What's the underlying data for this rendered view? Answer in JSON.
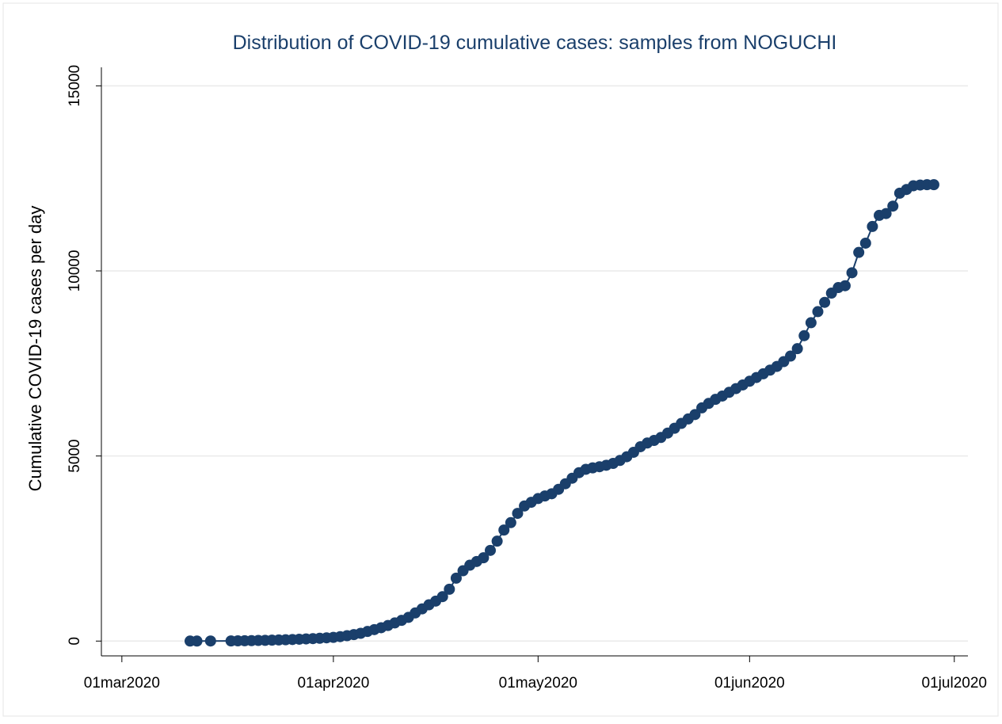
{
  "chart_data": {
    "type": "line",
    "title": "Distribution of COVID-19 cumulative cases: samples from NOGUCHI",
    "y_label": "Cumulative COVID-19 cases per day",
    "color": "#1a3f6b",
    "markers": true,
    "grid": true,
    "xlim": [
      "2020-02-27",
      "2020-07-03"
    ],
    "xticks": [
      {
        "value": "2020-03-01",
        "label": "01mar2020"
      },
      {
        "value": "2020-04-01",
        "label": "01apr2020"
      },
      {
        "value": "2020-05-01",
        "label": "01may2020"
      },
      {
        "value": "2020-06-01",
        "label": "01jun2020"
      },
      {
        "value": "2020-07-01",
        "label": "01jul2020"
      }
    ],
    "ylim": [
      -400,
      15500
    ],
    "yticks": [
      0,
      5000,
      10000,
      15000
    ],
    "x": [
      "2020-03-11",
      "2020-03-12",
      "2020-03-14",
      "2020-03-17",
      "2020-03-18",
      "2020-03-19",
      "2020-03-20",
      "2020-03-21",
      "2020-03-22",
      "2020-03-23",
      "2020-03-24",
      "2020-03-25",
      "2020-03-26",
      "2020-03-27",
      "2020-03-28",
      "2020-03-29",
      "2020-03-30",
      "2020-03-31",
      "2020-04-01",
      "2020-04-02",
      "2020-04-03",
      "2020-04-04",
      "2020-04-05",
      "2020-04-06",
      "2020-04-07",
      "2020-04-08",
      "2020-04-09",
      "2020-04-10",
      "2020-04-11",
      "2020-04-12",
      "2020-04-13",
      "2020-04-14",
      "2020-04-15",
      "2020-04-16",
      "2020-04-17",
      "2020-04-18",
      "2020-04-19",
      "2020-04-20",
      "2020-04-21",
      "2020-04-22",
      "2020-04-23",
      "2020-04-24",
      "2020-04-25",
      "2020-04-26",
      "2020-04-27",
      "2020-04-28",
      "2020-04-29",
      "2020-04-30",
      "2020-05-01",
      "2020-05-02",
      "2020-05-03",
      "2020-05-04",
      "2020-05-05",
      "2020-05-06",
      "2020-05-07",
      "2020-05-08",
      "2020-05-09",
      "2020-05-10",
      "2020-05-11",
      "2020-05-12",
      "2020-05-13",
      "2020-05-14",
      "2020-05-15",
      "2020-05-16",
      "2020-05-17",
      "2020-05-18",
      "2020-05-19",
      "2020-05-20",
      "2020-05-21",
      "2020-05-22",
      "2020-05-23",
      "2020-05-24",
      "2020-05-25",
      "2020-05-26",
      "2020-05-27",
      "2020-05-28",
      "2020-05-29",
      "2020-05-30",
      "2020-05-31",
      "2020-06-01",
      "2020-06-02",
      "2020-06-03",
      "2020-06-04",
      "2020-06-05",
      "2020-06-06",
      "2020-06-07",
      "2020-06-08",
      "2020-06-09",
      "2020-06-10",
      "2020-06-11",
      "2020-06-12",
      "2020-06-13",
      "2020-06-14",
      "2020-06-15",
      "2020-06-16",
      "2020-06-17",
      "2020-06-18",
      "2020-06-19",
      "2020-06-20",
      "2020-06-21",
      "2020-06-22",
      "2020-06-23",
      "2020-06-24",
      "2020-06-25",
      "2020-06-26",
      "2020-06-27",
      "2020-06-28"
    ],
    "values": [
      0,
      0,
      2,
      4,
      6,
      9,
      12,
      16,
      20,
      25,
      30,
      36,
      42,
      50,
      58,
      66,
      75,
      88,
      100,
      120,
      145,
      175,
      210,
      260,
      310,
      360,
      420,
      490,
      560,
      640,
      760,
      870,
      980,
      1080,
      1200,
      1400,
      1700,
      1900,
      2050,
      2150,
      2250,
      2450,
      2700,
      3000,
      3200,
      3450,
      3650,
      3750,
      3850,
      3920,
      3980,
      4100,
      4250,
      4400,
      4550,
      4640,
      4680,
      4710,
      4750,
      4800,
      4880,
      4980,
      5100,
      5250,
      5350,
      5420,
      5500,
      5620,
      5750,
      5880,
      6000,
      6120,
      6300,
      6420,
      6530,
      6620,
      6720,
      6820,
      6920,
      7020,
      7120,
      7220,
      7320,
      7420,
      7550,
      7700,
      7900,
      8250,
      8600,
      8900,
      9150,
      9400,
      9550,
      9600,
      9950,
      10500,
      10750,
      11200,
      11500,
      11550,
      11750,
      12100,
      12200,
      12300,
      12320,
      12330,
      12330
    ]
  }
}
